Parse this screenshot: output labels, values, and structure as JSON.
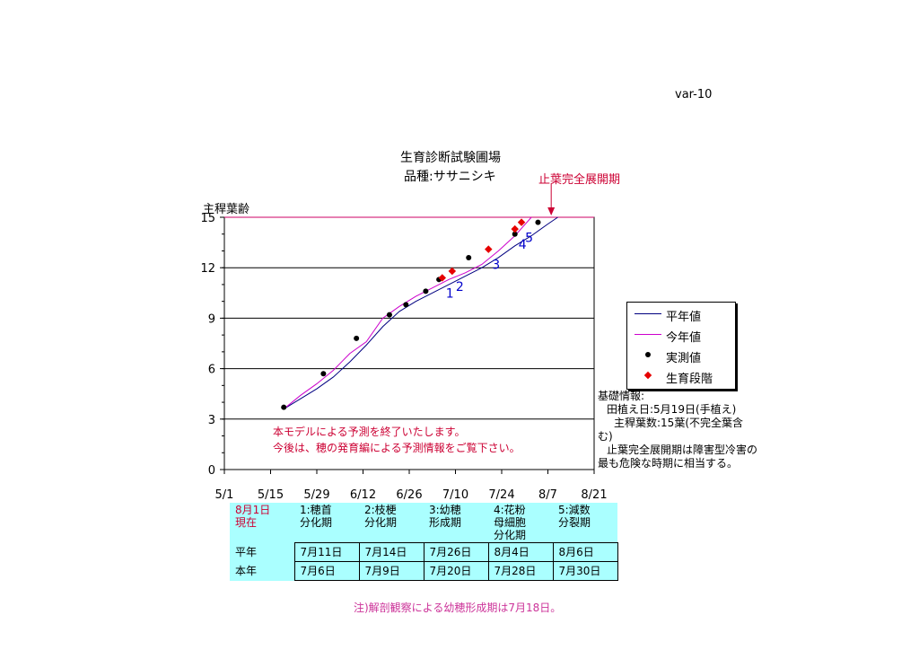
{
  "header": {
    "var": "var-10",
    "title_line1": "生育診断試験圃場",
    "title_line2": "品種:ササニシキ",
    "stop_label": "止葉完全展開期"
  },
  "chart_data": {
    "type": "line",
    "ylabel": "主稈葉齢",
    "ylim": [
      0,
      15
    ],
    "yticks": [
      0,
      3,
      6,
      9,
      12,
      15
    ],
    "xticks": [
      "5/1",
      "5/15",
      "5/29",
      "6/12",
      "6/26",
      "7/10",
      "7/24",
      "8/7",
      "8/21"
    ],
    "xlim": [
      "5/1",
      "8/21"
    ],
    "grid": "horizontal",
    "series": [
      {
        "name": "平年値",
        "color": "#000080",
        "x": [
          "5/19",
          "5/24",
          "5/29",
          "6/3",
          "6/8",
          "6/13",
          "6/18",
          "6/23",
          "6/28",
          "7/3",
          "7/8",
          "7/13",
          "7/18",
          "7/23",
          "7/28",
          "8/2",
          "8/7",
          "8/10"
        ],
        "y": [
          3.6,
          4.2,
          4.8,
          5.5,
          6.4,
          7.4,
          8.5,
          9.4,
          10.0,
          10.5,
          11.0,
          11.5,
          12.0,
          12.6,
          13.3,
          13.9,
          14.6,
          15.0
        ]
      },
      {
        "name": "今年値",
        "color": "#cc00cc",
        "x": [
          "5/19",
          "5/24",
          "5/29",
          "6/3",
          "6/8",
          "6/13",
          "6/18",
          "6/23",
          "6/28",
          "7/3",
          "7/8",
          "7/13",
          "7/18",
          "7/23",
          "7/28",
          "8/2"
        ],
        "y": [
          3.6,
          4.4,
          5.1,
          5.9,
          6.9,
          7.6,
          9.0,
          9.7,
          10.3,
          10.8,
          11.3,
          11.7,
          12.2,
          13.0,
          13.9,
          15.0
        ]
      },
      {
        "name": "実測値",
        "color": "#000000",
        "x": [
          "5/19",
          "5/31",
          "6/10",
          "6/20",
          "6/25",
          "7/1",
          "7/5",
          "7/14",
          "7/28",
          "8/4"
        ],
        "y": [
          3.7,
          5.7,
          7.8,
          9.2,
          9.8,
          10.6,
          11.3,
          12.6,
          14.0,
          14.7
        ]
      },
      {
        "name": "生育段階",
        "color": "#e60000",
        "x": [
          "7/6",
          "7/9",
          "7/20",
          "7/28",
          "7/30"
        ],
        "y": [
          11.4,
          11.8,
          13.1,
          14.3,
          14.7
        ],
        "labels": [
          "1",
          "2",
          "3",
          "4",
          "5"
        ]
      }
    ]
  },
  "legend": {
    "items": [
      {
        "label": "平年値"
      },
      {
        "label": "今年値"
      },
      {
        "label": "実測値"
      },
      {
        "label": "生育段階"
      }
    ]
  },
  "info": {
    "heading": "基礎情報:",
    "line1": "田植え日:5月19日(手植え)",
    "line2": "主稈葉数:15葉(不完全葉含",
    "line3": "む)",
    "line4": "止葉完全展開期は障害型冷害の",
    "line5": "最も危険な時期に相当する。"
  },
  "notice": {
    "line1": "本モデルによる予測を終了いたします。",
    "line2": "今後は、穂の発育編による予測情報をご覧下さい。"
  },
  "stages_table": {
    "as_of_line1": "8月1日",
    "as_of_line2": "現在",
    "headers": [
      [
        "1:穂首",
        "分化期",
        ""
      ],
      [
        "2:枝梗",
        "分化期",
        ""
      ],
      [
        "3:幼穂",
        "形成期",
        ""
      ],
      [
        "4:花粉",
        "母細胞",
        "分化期"
      ],
      [
        "5:減数",
        "分裂期",
        ""
      ]
    ],
    "rows": [
      {
        "label": "平年",
        "values": [
          "7月11日",
          "7月14日",
          "7月26日",
          "8月4日",
          "8月6日"
        ]
      },
      {
        "label": "本年",
        "values": [
          "7月6日",
          "7月9日",
          "7月20日",
          "7月28日",
          "7月30日"
        ]
      }
    ]
  },
  "footnote": "注)解剖観察による幼穂形成期は7月18日。"
}
